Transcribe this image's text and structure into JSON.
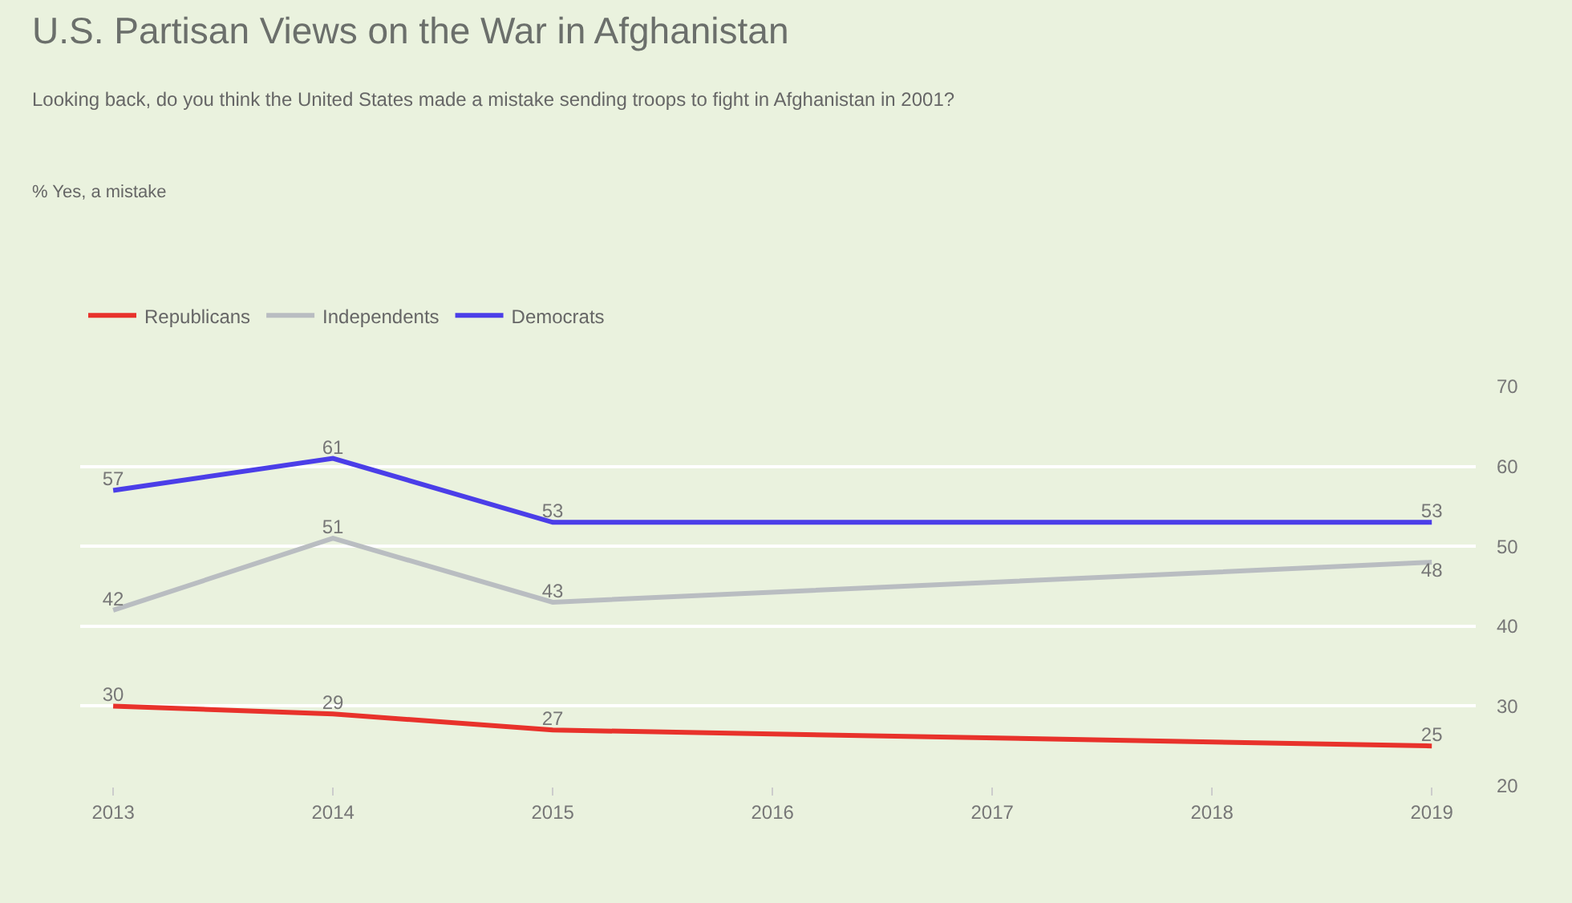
{
  "chart_data": {
    "type": "line",
    "title": "U.S. Partisan Views on the War in Afghanistan",
    "subtitle": "Looking back, do you think the United States made a mistake sending troops to fight in Afghanistan in 2001?",
    "annotations": [
      "% Yes, a mistake"
    ],
    "x": [
      2013,
      2014,
      2015,
      2019
    ],
    "series": [
      {
        "name": "Republicans",
        "color": "#e8322b",
        "values": [
          30,
          29,
          27,
          25
        ]
      },
      {
        "name": "Independents",
        "color": "#b9bdc1",
        "values": [
          42,
          51,
          43,
          48
        ]
      },
      {
        "name": "Democrats",
        "color": "#4b3ee8",
        "values": [
          57,
          61,
          53,
          53
        ]
      }
    ],
    "xlim": [
      2012.85,
      2019.2
    ],
    "xticks": [
      2013,
      2014,
      2015,
      2016,
      2017,
      2018,
      2019
    ],
    "ylim": [
      20,
      70
    ],
    "yticks": [
      20,
      30,
      40,
      50,
      60,
      70
    ],
    "grid": "y",
    "legend": "top left",
    "data_labels": true,
    "marker": "none",
    "line_style": "solid"
  }
}
